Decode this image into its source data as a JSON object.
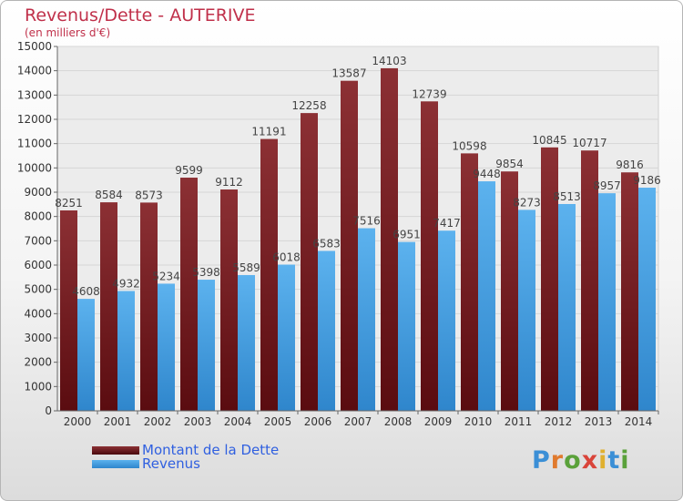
{
  "header": {
    "title": "Revenus/Dette - AUTERIVE",
    "subtitle": "(en milliers d'€)"
  },
  "legend": {
    "debt_label": "Montant de la Dette",
    "revenue_label": "Revenus"
  },
  "logo": {
    "text": "Proxiti"
  },
  "colors": {
    "debt": "#7a2a2e",
    "revenue": "#4aa3e6",
    "title": "#c0304a",
    "legend_text": "#3060e0"
  },
  "chart_data": {
    "type": "bar",
    "categories": [
      "2000",
      "2001",
      "2002",
      "2003",
      "2004",
      "2005",
      "2006",
      "2007",
      "2008",
      "2009",
      "2010",
      "2011",
      "2012",
      "2013",
      "2014"
    ],
    "series": [
      {
        "name": "Montant de la Dette",
        "values": [
          8251,
          8584,
          8573,
          9599,
          9112,
          11191,
          12258,
          13587,
          14103,
          12739,
          10598,
          9854,
          10845,
          10717,
          9816
        ]
      },
      {
        "name": "Revenus",
        "values": [
          4608,
          4932,
          5234,
          5398,
          5589,
          6018,
          6583,
          7516,
          6951,
          7417,
          9448,
          8273,
          8513,
          8957,
          9186
        ]
      }
    ],
    "ylim": [
      0,
      15000
    ],
    "yticks": [
      0,
      1000,
      2000,
      3000,
      4000,
      5000,
      6000,
      7000,
      8000,
      9000,
      10000,
      11000,
      12000,
      13000,
      14000,
      15000
    ],
    "grid": true,
    "legend_position": "bottom-left"
  }
}
